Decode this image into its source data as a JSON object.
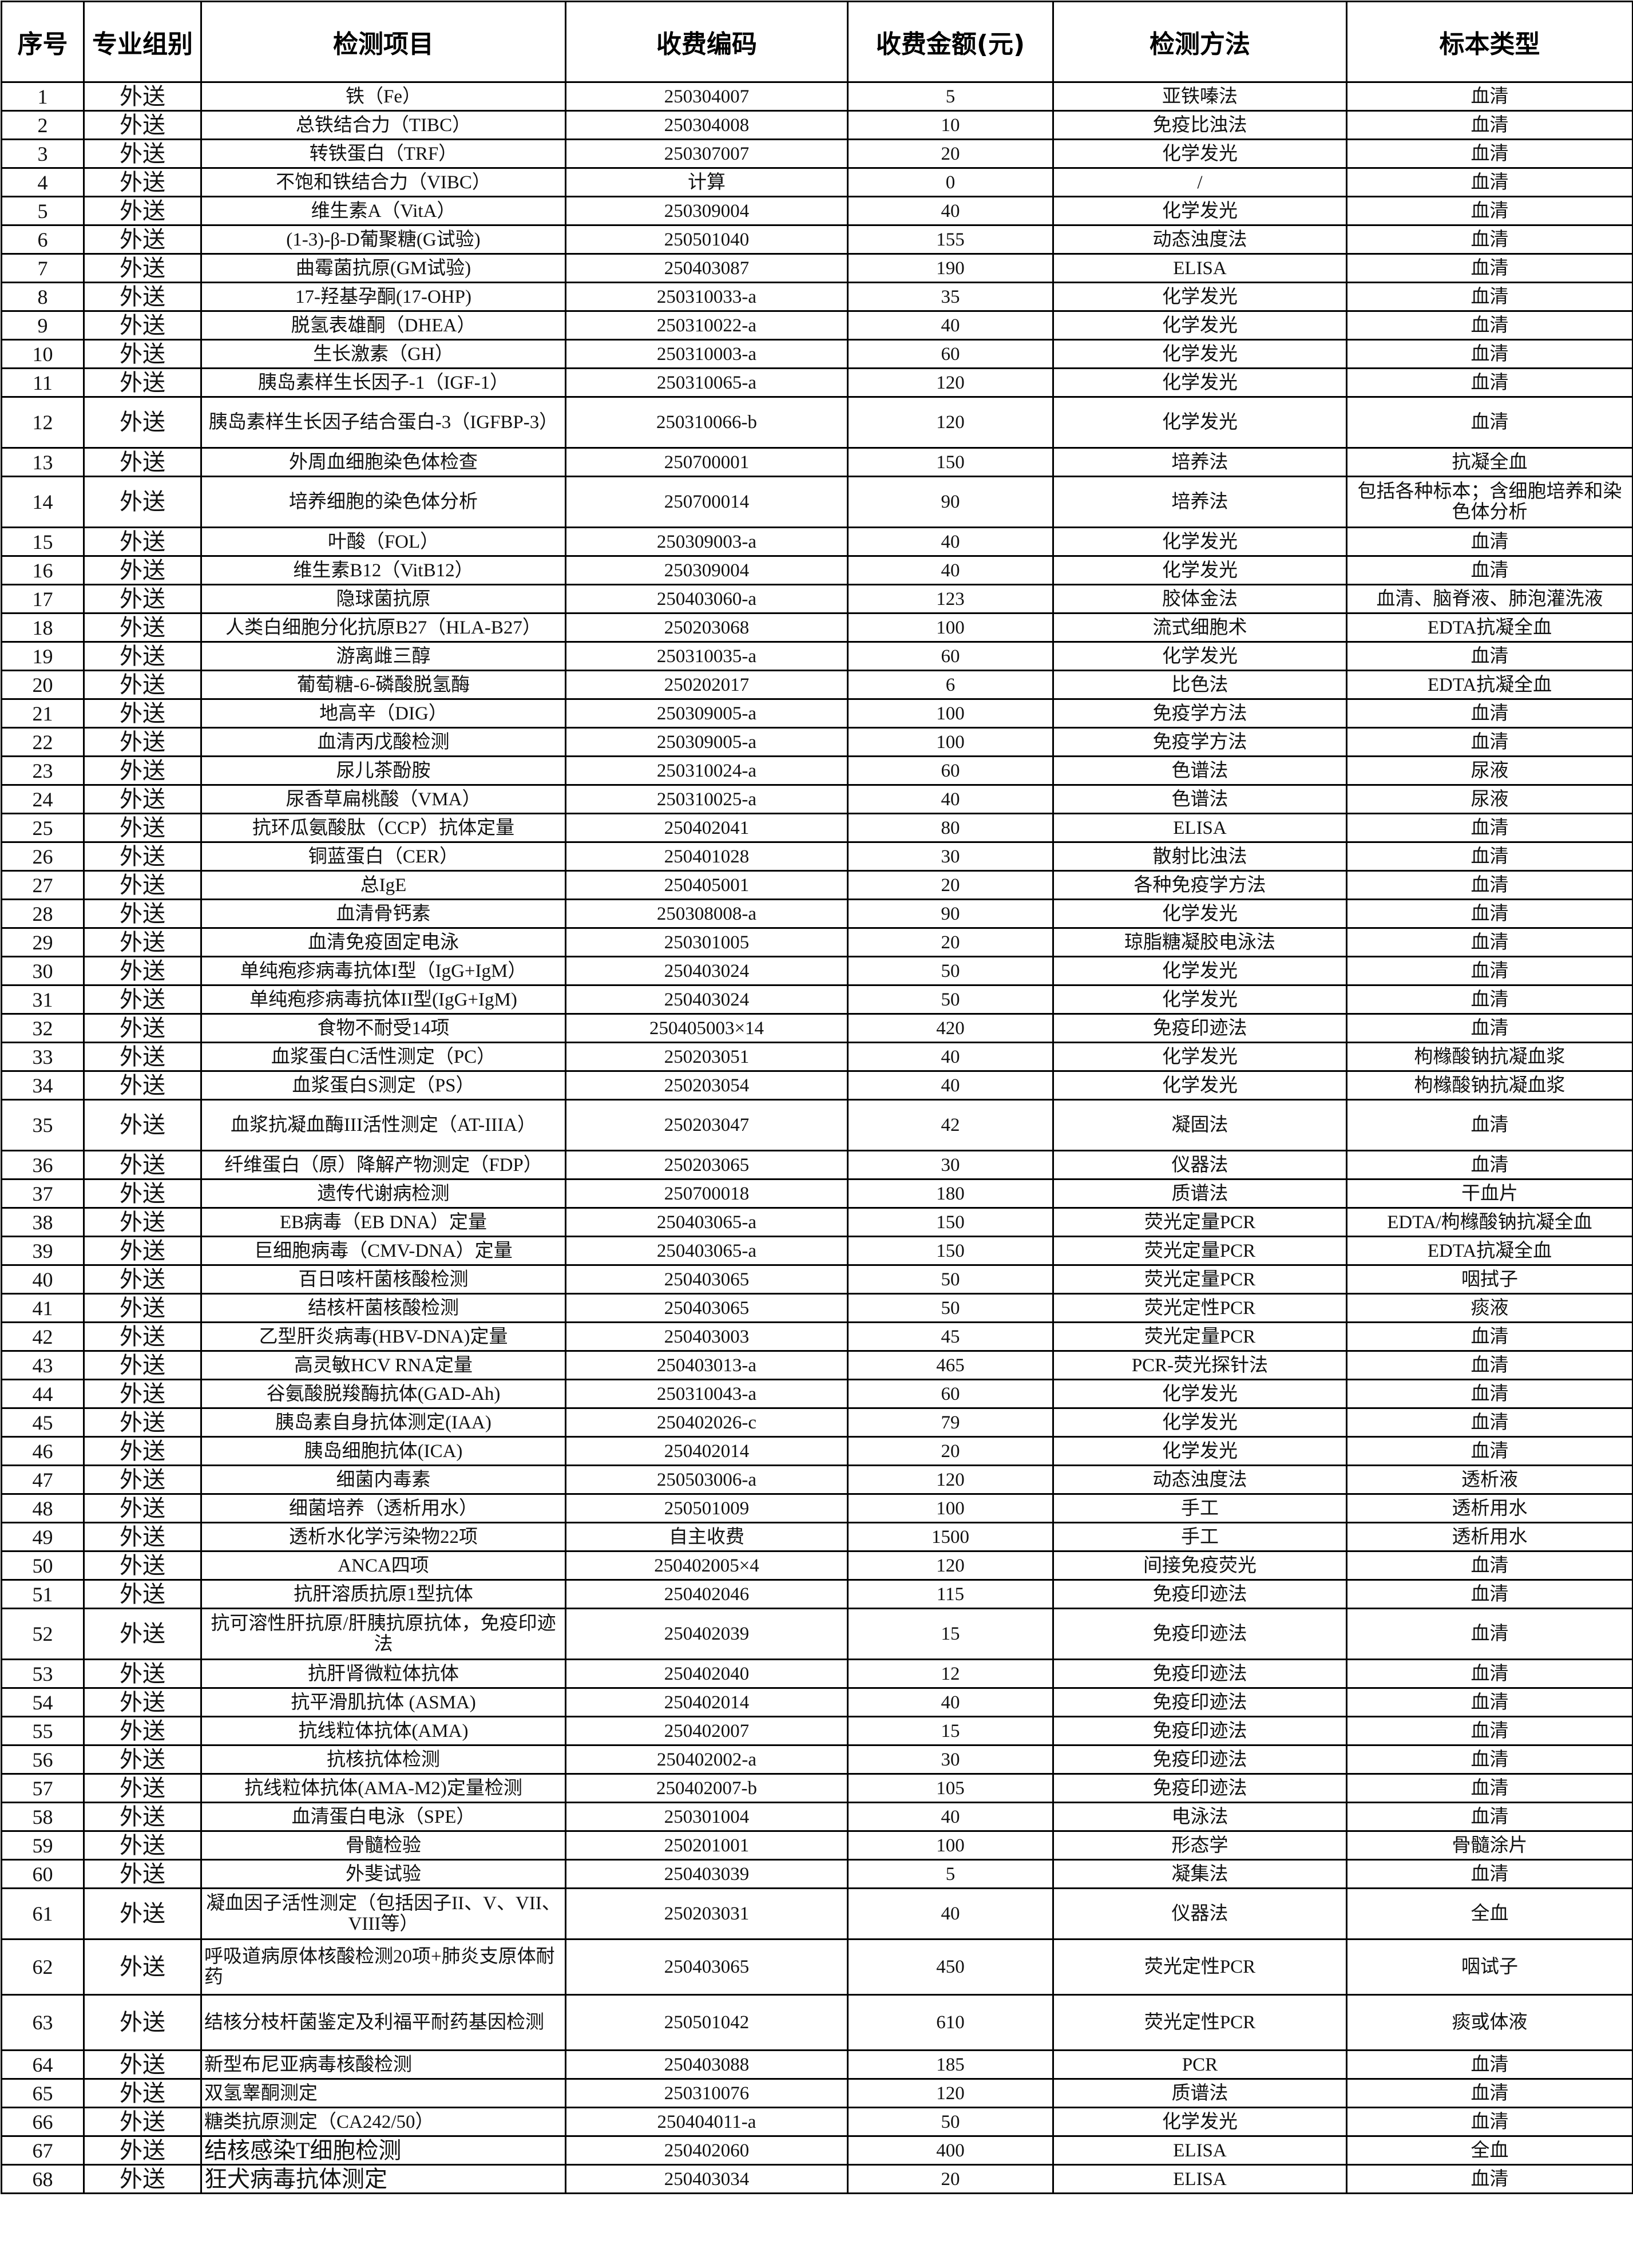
{
  "headers": [
    "序号",
    "专业组别",
    "检测项目",
    "收费编码",
    "收费金额(元)",
    "检测方法",
    "标本类型"
  ],
  "rows": [
    [
      "1",
      "外送",
      "铁（Fe）",
      "250304007",
      "5",
      "亚铁嗪法",
      "血清"
    ],
    [
      "2",
      "外送",
      "总铁结合力（TIBC）",
      "250304008",
      "10",
      "免疫比浊法",
      "血清"
    ],
    [
      "3",
      "外送",
      "转铁蛋白（TRF）",
      "250307007",
      "20",
      "化学发光",
      "血清"
    ],
    [
      "4",
      "外送",
      "不饱和铁结合力（VIBC）",
      "计算",
      "0",
      "/",
      "血清"
    ],
    [
      "5",
      "外送",
      "维生素A（VitA）",
      "250309004",
      "40",
      "化学发光",
      "血清"
    ],
    [
      "6",
      "外送",
      "(1-3)-β-D葡聚糖(G试验)",
      "250501040",
      "155",
      "动态浊度法",
      "血清"
    ],
    [
      "7",
      "外送",
      "曲霉菌抗原(GM试验)",
      "250403087",
      "190",
      "ELISA",
      "血清"
    ],
    [
      "8",
      "外送",
      "17-羟基孕酮(17-OHP)",
      "250310033-a",
      "35",
      "化学发光",
      "血清"
    ],
    [
      "9",
      "外送",
      "脱氢表雄酮（DHEA）",
      "250310022-a",
      "40",
      "化学发光",
      "血清"
    ],
    [
      "10",
      "外送",
      "生长激素（GH）",
      "250310003-a",
      "60",
      "化学发光",
      "血清"
    ],
    [
      "11",
      "外送",
      "胰岛素样生长因子-1（IGF-1）",
      "250310065-a",
      "120",
      "化学发光",
      "血清"
    ],
    [
      "12",
      "外送",
      "胰岛素样生长因子结合蛋白-3（IGFBP-3）",
      "250310066-b",
      "120",
      "化学发光",
      "血清"
    ],
    [
      "13",
      "外送",
      "外周血细胞染色体检查",
      "250700001",
      "150",
      "培养法",
      "抗凝全血"
    ],
    [
      "14",
      "外送",
      "培养细胞的染色体分析",
      "250700014",
      "90",
      "培养法",
      "包括各种标本；含细胞培养和染色体分析"
    ],
    [
      "15",
      "外送",
      "叶酸（FOL）",
      "250309003-a",
      "40",
      "化学发光",
      "血清"
    ],
    [
      "16",
      "外送",
      "维生素B12（VitB12）",
      "250309004",
      "40",
      "化学发光",
      "血清"
    ],
    [
      "17",
      "外送",
      "隐球菌抗原",
      "250403060-a",
      "123",
      "胶体金法",
      "血清、脑脊液、肺泡灌洗液"
    ],
    [
      "18",
      "外送",
      "人类白细胞分化抗原B27（HLA-B27）",
      "250203068",
      "100",
      "流式细胞术",
      "EDTA抗凝全血"
    ],
    [
      "19",
      "外送",
      "游离雌三醇",
      "250310035-a",
      "60",
      "化学发光",
      "血清"
    ],
    [
      "20",
      "外送",
      "葡萄糖-6-磷酸脱氢酶",
      "250202017",
      "6",
      "比色法",
      "EDTA抗凝全血"
    ],
    [
      "21",
      "外送",
      "地高辛（DIG）",
      "250309005-a",
      "100",
      "免疫学方法",
      "血清"
    ],
    [
      "22",
      "外送",
      "血清丙戊酸检测",
      "250309005-a",
      "100",
      "免疫学方法",
      "血清"
    ],
    [
      "23",
      "外送",
      "尿儿茶酚胺",
      "250310024-a",
      "60",
      "色谱法",
      "尿液"
    ],
    [
      "24",
      "外送",
      "尿香草扁桃酸（VMA）",
      "250310025-a",
      "40",
      "色谱法",
      "尿液"
    ],
    [
      "25",
      "外送",
      "抗环瓜氨酸肽（CCP）抗体定量",
      "250402041",
      "80",
      "ELISA",
      "血清"
    ],
    [
      "26",
      "外送",
      "铜蓝蛋白（CER）",
      "250401028",
      "30",
      "散射比浊法",
      "血清"
    ],
    [
      "27",
      "外送",
      "总IgE",
      "250405001",
      "20",
      "各种免疫学方法",
      "血清"
    ],
    [
      "28",
      "外送",
      "血清骨钙素",
      "250308008-a",
      "90",
      "化学发光",
      "血清"
    ],
    [
      "29",
      "外送",
      "血清免疫固定电泳",
      "250301005",
      "20",
      "琼脂糖凝胶电泳法",
      "血清"
    ],
    [
      "30",
      "外送",
      "单纯疱疹病毒抗体I型（IgG+IgM）",
      "250403024",
      "50",
      "化学发光",
      "血清"
    ],
    [
      "31",
      "外送",
      "单纯疱疹病毒抗体II型(IgG+IgM)",
      "250403024",
      "50",
      "化学发光",
      "血清"
    ],
    [
      "32",
      "外送",
      "食物不耐受14项",
      "250405003×14",
      "420",
      "免疫印迹法",
      "血清"
    ],
    [
      "33",
      "外送",
      "血浆蛋白C活性测定（PC）",
      "250203051",
      "40",
      "化学发光",
      "枸橼酸钠抗凝血浆"
    ],
    [
      "34",
      "外送",
      "血浆蛋白S测定（PS）",
      "250203054",
      "40",
      "化学发光",
      "枸橼酸钠抗凝血浆"
    ],
    [
      "35",
      "外送",
      "血浆抗凝血酶III活性测定（AT-IIIA）",
      "250203047",
      "42",
      "凝固法",
      "血清"
    ],
    [
      "36",
      "外送",
      "纤维蛋白（原）降解产物测定（FDP）",
      "250203065",
      "30",
      "仪器法",
      "血清"
    ],
    [
      "37",
      "外送",
      "遗传代谢病检测",
      "250700018",
      "180",
      "质谱法",
      "干血片"
    ],
    [
      "38",
      "外送",
      "EB病毒（EB DNA）定量",
      "250403065-a",
      "150",
      "荧光定量PCR",
      "EDTA/枸橼酸钠抗凝全血"
    ],
    [
      "39",
      "外送",
      "巨细胞病毒（CMV-DNA）定量",
      "250403065-a",
      "150",
      "荧光定量PCR",
      "EDTA抗凝全血"
    ],
    [
      "40",
      "外送",
      "百日咳杆菌核酸检测",
      "250403065",
      "50",
      "荧光定量PCR",
      "咽拭子"
    ],
    [
      "41",
      "外送",
      "结核杆菌核酸检测",
      "250403065",
      "50",
      "荧光定性PCR",
      "痰液"
    ],
    [
      "42",
      "外送",
      "乙型肝炎病毒(HBV-DNA)定量",
      "250403003",
      "45",
      "荧光定量PCR",
      "血清"
    ],
    [
      "43",
      "外送",
      "高灵敏HCV RNA定量",
      "250403013-a",
      "465",
      "PCR-荧光探针法",
      "血清"
    ],
    [
      "44",
      "外送",
      "谷氨酸脱羧酶抗体(GAD-Ah)",
      "250310043-a",
      "60",
      "化学发光",
      "血清"
    ],
    [
      "45",
      "外送",
      "胰岛素自身抗体测定(IAA)",
      "250402026-c",
      "79",
      "化学发光",
      "血清"
    ],
    [
      "46",
      "外送",
      "胰岛细胞抗体(ICA)",
      "250402014",
      "20",
      "化学发光",
      "血清"
    ],
    [
      "47",
      "外送",
      "细菌内毒素",
      "250503006-a",
      "120",
      "动态浊度法",
      "透析液"
    ],
    [
      "48",
      "外送",
      "细菌培养（透析用水）",
      "250501009",
      "100",
      "手工",
      "透析用水"
    ],
    [
      "49",
      "外送",
      "透析水化学污染物22项",
      "自主收费",
      "1500",
      "手工",
      "透析用水"
    ],
    [
      "50",
      "外送",
      "ANCA四项",
      "250402005×4",
      "120",
      "间接免疫荧光",
      "血清"
    ],
    [
      "51",
      "外送",
      "抗肝溶质抗原1型抗体",
      "250402046",
      "115",
      "免疫印迹法",
      "血清"
    ],
    [
      "52",
      "外送",
      "抗可溶性肝抗原/肝胰抗原抗体，免疫印迹法",
      "250402039",
      "15",
      "免疫印迹法",
      "血清"
    ],
    [
      "53",
      "外送",
      "抗肝肾微粒体抗体",
      "250402040",
      "12",
      "免疫印迹法",
      "血清"
    ],
    [
      "54",
      "外送",
      "抗平滑肌抗体 (ASMA)",
      "250402014",
      "40",
      "免疫印迹法",
      "血清"
    ],
    [
      "55",
      "外送",
      "抗线粒体抗体(AMA)",
      "250402007",
      "15",
      "免疫印迹法",
      "血清"
    ],
    [
      "56",
      "外送",
      "抗核抗体检测",
      "250402002-a",
      "30",
      "免疫印迹法",
      "血清"
    ],
    [
      "57",
      "外送",
      "抗线粒体抗体(AMA-M2)定量检测",
      "250402007-b",
      "105",
      "免疫印迹法",
      "血清"
    ],
    [
      "58",
      "外送",
      "血清蛋白电泳（SPE）",
      "250301004",
      "40",
      "电泳法",
      "血清"
    ],
    [
      "59",
      "外送",
      "骨髓检验",
      "250201001",
      "100",
      "形态学",
      "骨髓涂片"
    ],
    [
      "60",
      "外送",
      "外斐试验",
      "250403039",
      "5",
      "凝集法",
      "血清"
    ],
    [
      "61",
      "外送",
      "凝血因子活性测定（包括因子II、V、VII、VIII等）",
      "250203031",
      "40",
      "仪器法",
      "全血"
    ],
    [
      "62",
      "外送",
      "呼吸道病原体核酸检测20项+肺炎支原体耐药",
      "250403065",
      "450",
      "荧光定性PCR",
      "咽试子"
    ],
    [
      "63",
      "外送",
      "结核分枝杆菌鉴定及利福平耐药基因检测",
      "250501042",
      "610",
      "荧光定性PCR",
      "痰或体液"
    ],
    [
      "64",
      "外送",
      "新型布尼亚病毒核酸检测",
      "250403088",
      "185",
      "PCR",
      "血清"
    ],
    [
      "65",
      "外送",
      "双氢睾酮测定",
      "250310076",
      "120",
      "质谱法",
      "血清"
    ],
    [
      "66",
      "外送",
      "糖类抗原测定（CA242/50）",
      "250404011-a",
      "50",
      "化学发光",
      "血清"
    ],
    [
      "67",
      "外送",
      "结核感染T细胞检测",
      "250402060",
      "400",
      "ELISA",
      "全血"
    ],
    [
      "68",
      "外送",
      "狂犬病毒抗体测定",
      "250403034",
      "20",
      "ELISA",
      "血清"
    ]
  ]
}
